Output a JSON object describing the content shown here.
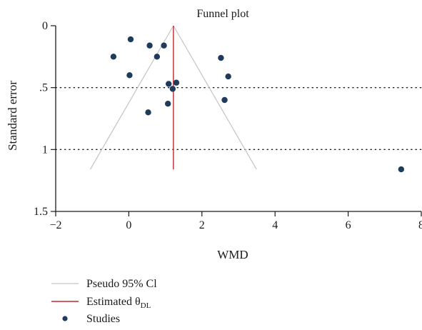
{
  "chart_data": {
    "type": "scatter",
    "title": "Funnel plot",
    "xlabel": "WMD",
    "ylabel": "Standard error",
    "xlim": [
      -2,
      8
    ],
    "ylim": [
      0,
      1.5
    ],
    "y_reversed": true,
    "xticks": [
      -2,
      0,
      2,
      4,
      6,
      8
    ],
    "xtick_labels": [
      "−2",
      "0",
      "2",
      "4",
      "6",
      "8"
    ],
    "yticks": [
      0,
      0.5,
      1,
      1.5
    ],
    "ytick_labels": [
      "0",
      ".5",
      "1",
      "1.5"
    ],
    "reference_lines_y": [
      0.5,
      1
    ],
    "estimate": 1.22,
    "pseudo_ci_max_se": 1.16,
    "studies": [
      {
        "x": 0.05,
        "y": 0.11
      },
      {
        "x": 0.57,
        "y": 0.16
      },
      {
        "x": 0.96,
        "y": 0.16
      },
      {
        "x": -0.42,
        "y": 0.25
      },
      {
        "x": 0.77,
        "y": 0.25
      },
      {
        "x": 2.52,
        "y": 0.26
      },
      {
        "x": 0.02,
        "y": 0.4
      },
      {
        "x": 2.72,
        "y": 0.41
      },
      {
        "x": 1.09,
        "y": 0.47
      },
      {
        "x": 1.3,
        "y": 0.46
      },
      {
        "x": 1.2,
        "y": 0.51
      },
      {
        "x": 2.62,
        "y": 0.6
      },
      {
        "x": 1.07,
        "y": 0.63
      },
      {
        "x": 0.53,
        "y": 0.7
      },
      {
        "x": 7.45,
        "y": 1.16
      }
    ],
    "legend": {
      "placement": "bottom-left",
      "items": [
        {
          "key": "ci",
          "label": "Pseudo 95% Cl"
        },
        {
          "key": "est",
          "label": "Estimated θ",
          "subscript": "DL"
        },
        {
          "key": "studies",
          "label": "Studies"
        }
      ]
    },
    "colors": {
      "ci": "#c4c4c4",
      "est": "#c0282e",
      "studies": "#1f3b5c",
      "axis": "#1a1a1a",
      "refline": "#1a1a1a"
    }
  }
}
